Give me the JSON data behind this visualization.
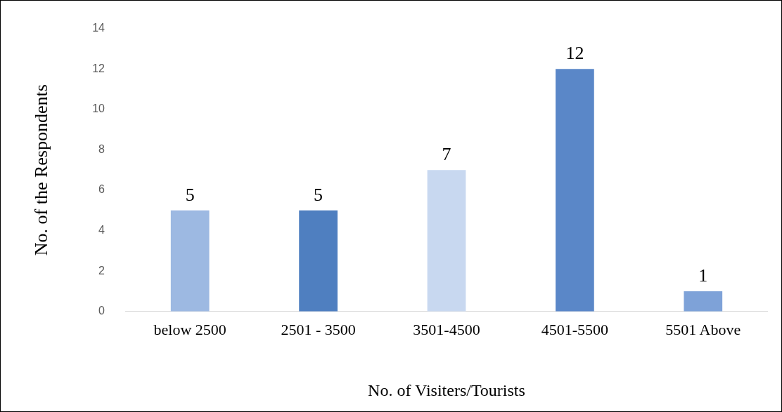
{
  "chart_data": {
    "type": "bar",
    "xlabel": "No. of Visiters/Tourists",
    "ylabel": "No. of the Respondents",
    "categories": [
      "below 2500",
      "2501 - 3500",
      "3501-4500",
      "4501-5500",
      "5501 Above"
    ],
    "values": [
      5,
      5,
      7,
      12,
      1
    ],
    "colors": [
      "#9db9e2",
      "#4f7fc0",
      "#c8d8f0",
      "#5a87c8",
      "#7ea2d8"
    ],
    "ylim": [
      0,
      14
    ],
    "yticks": [
      0,
      2,
      4,
      6,
      8,
      10,
      12,
      14
    ],
    "grid": false,
    "data_labels": true
  }
}
